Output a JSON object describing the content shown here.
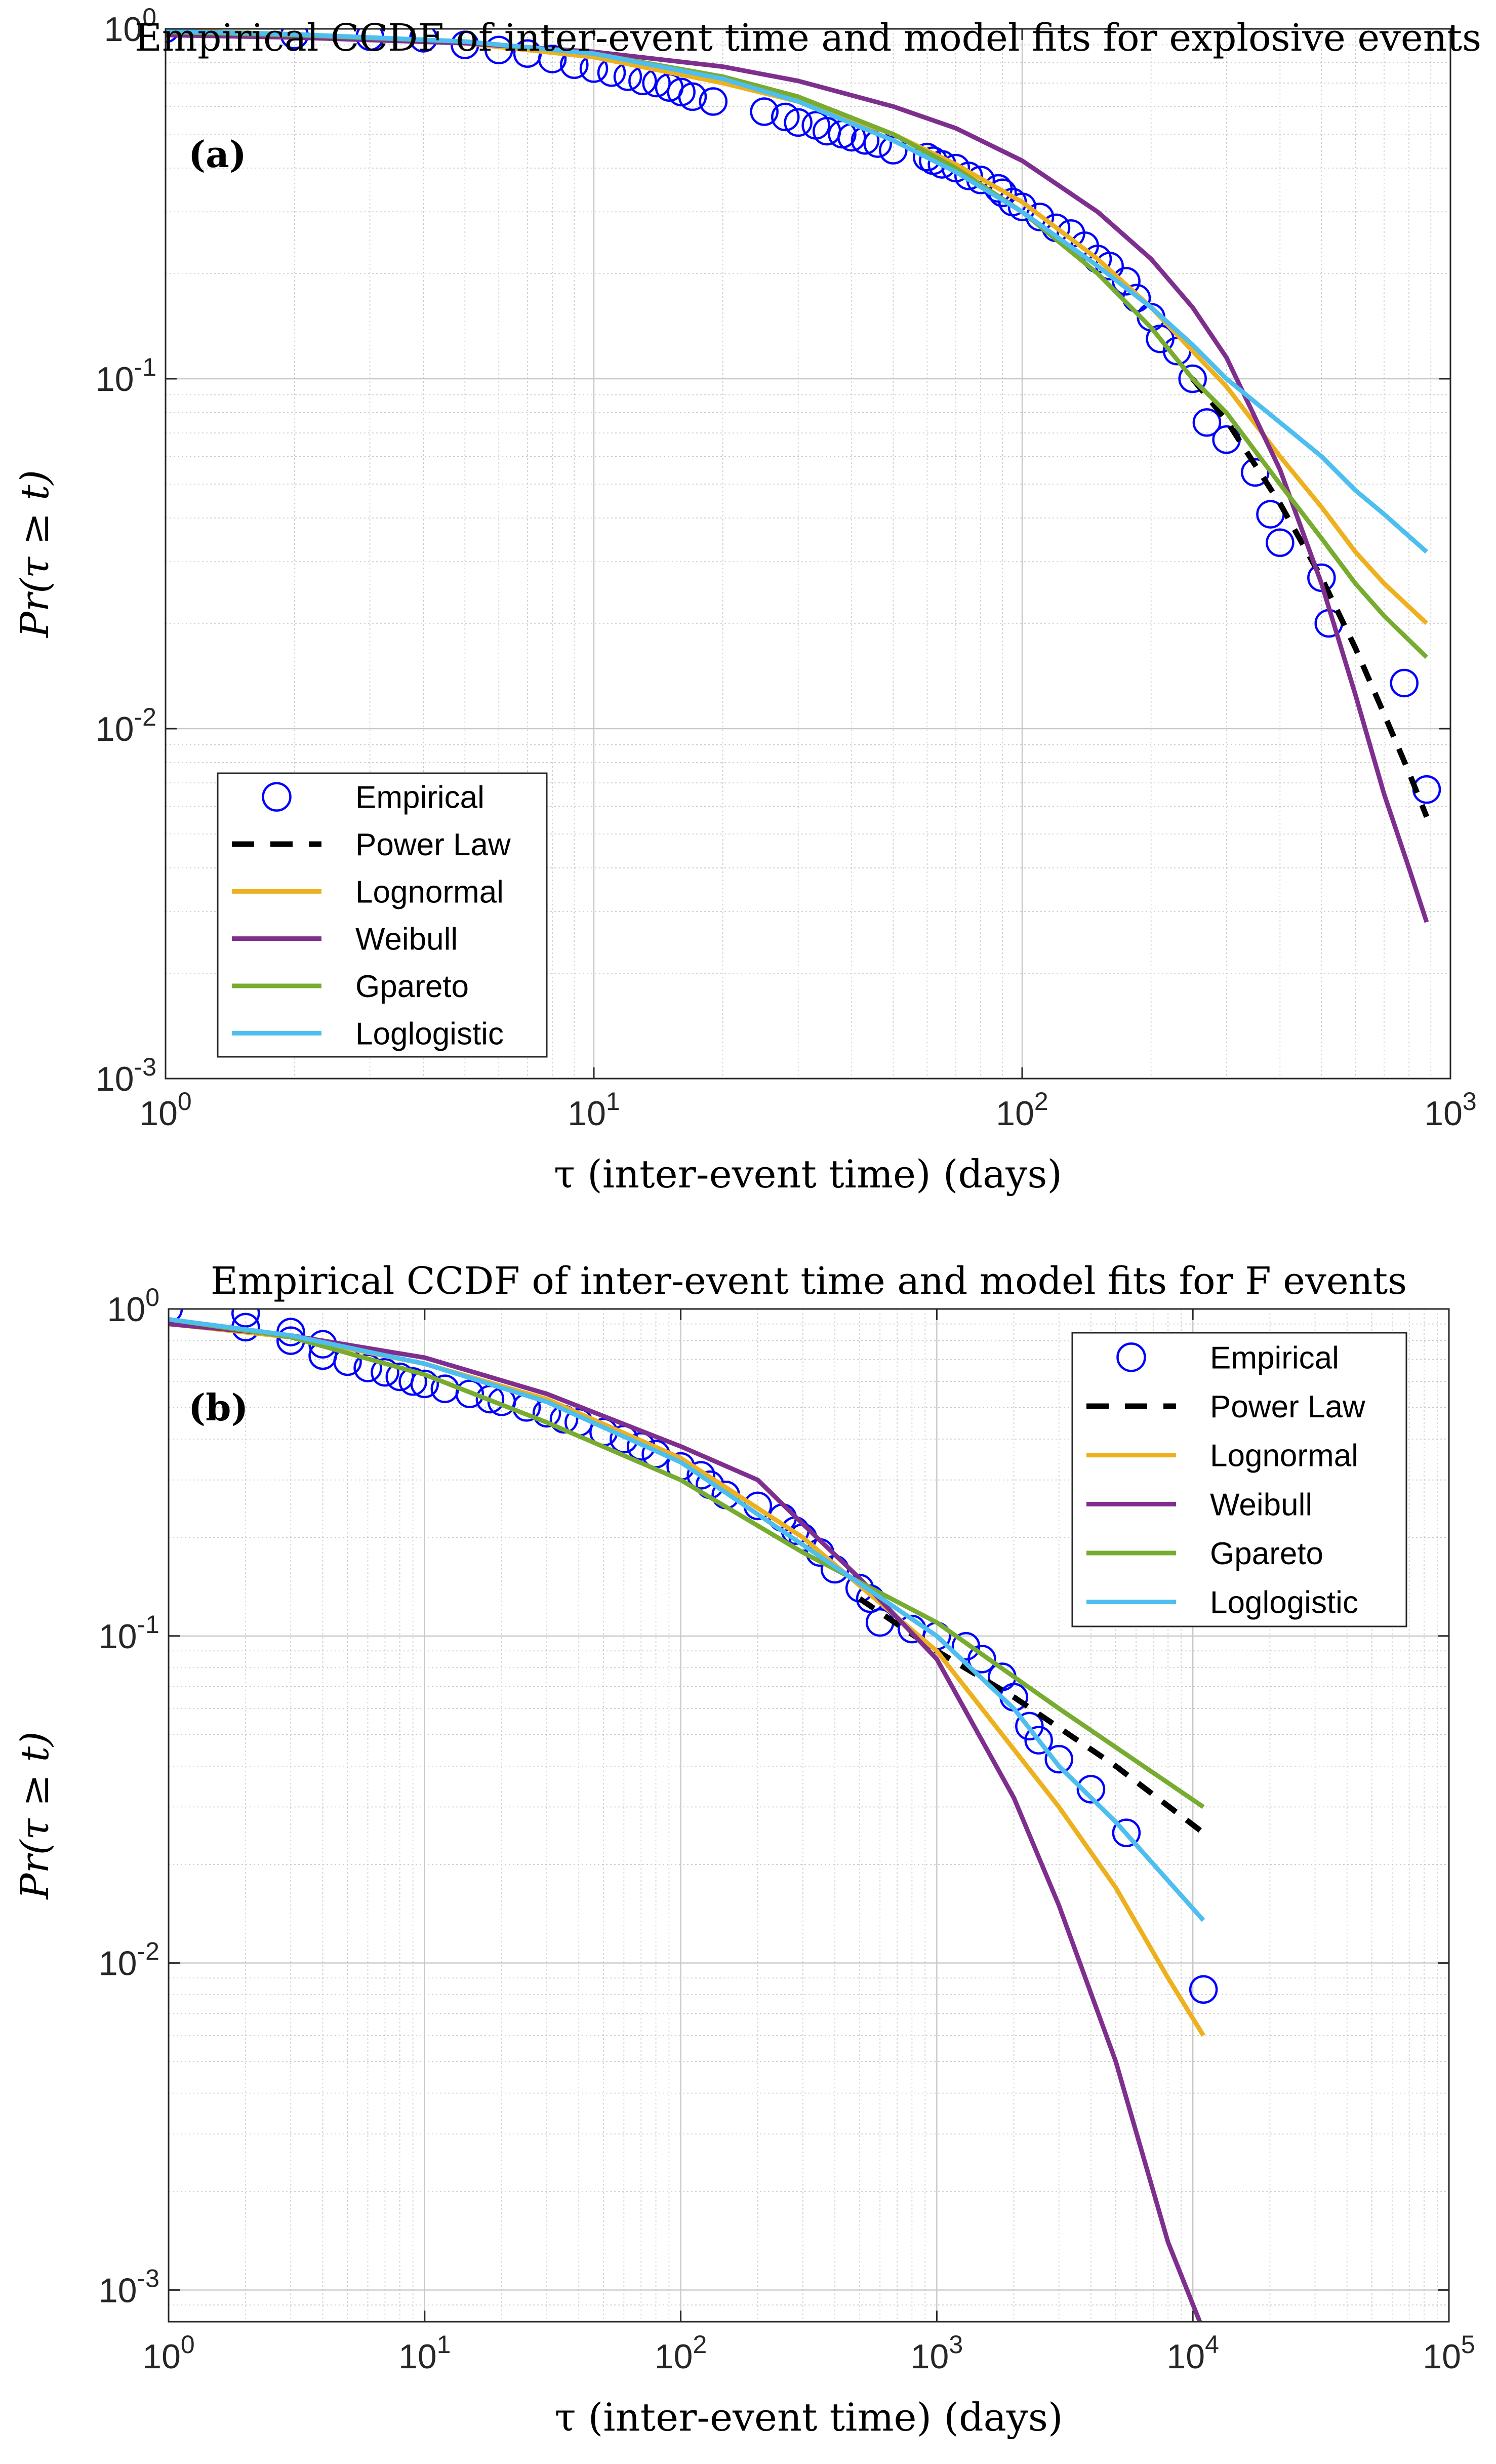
{
  "figure": {
    "background": "#ffffff",
    "grid_color": "#c8c8c8",
    "marker_color": "#0000ff",
    "colors": {
      "Power Law": "#000000",
      "Lognormal": "#edb120",
      "Weibull": "#7e2f8e",
      "Gpareto": "#77ac30",
      "Loglogistic": "#4dbeee"
    }
  },
  "chart_data": [
    {
      "type": "scatter",
      "panel_label": "(a)",
      "title": "Empirical CCDF of inter-event time and model fits for explosive events",
      "xlabel": "τ (inter-event time) (days)",
      "ylabel": "Pr(τ ≥ t)",
      "xscale": "log",
      "yscale": "log",
      "xlim": [
        1,
        1000
      ],
      "ylim": [
        0.001,
        1
      ],
      "grid": true,
      "legend_position": "bottom-left",
      "xticks": [
        {
          "base": "10",
          "exp": "0"
        },
        {
          "base": "10",
          "exp": "1"
        },
        {
          "base": "10",
          "exp": "2"
        },
        {
          "base": "10",
          "exp": "3"
        }
      ],
      "yticks": [
        {
          "base": "10",
          "exp": "0"
        },
        {
          "base": "10",
          "exp": "-1"
        },
        {
          "base": "10",
          "exp": "-2"
        },
        {
          "base": "10",
          "exp": "-3"
        }
      ],
      "legend": [
        "Empirical",
        "Power Law",
        "Lognormal",
        "Weibull",
        "Gpareto",
        "Loglogistic"
      ],
      "empirical": {
        "name": "Empirical",
        "x": [
          1,
          2,
          3,
          4,
          5,
          6,
          7,
          8,
          9,
          10,
          11,
          12,
          13,
          14,
          15,
          16,
          17,
          19,
          25,
          28,
          30,
          33,
          35,
          38,
          40,
          43,
          46,
          50,
          60,
          62,
          65,
          70,
          75,
          80,
          88,
          90,
          95,
          100,
          110,
          120,
          130,
          140,
          150,
          160,
          175,
          185,
          200,
          210,
          230,
          250,
          270,
          300,
          350,
          380,
          400,
          500,
          520,
          780,
          880
        ],
        "y": [
          1.0,
          0.96,
          0.95,
          0.94,
          0.9,
          0.87,
          0.85,
          0.82,
          0.79,
          0.77,
          0.75,
          0.73,
          0.71,
          0.7,
          0.68,
          0.66,
          0.64,
          0.62,
          0.58,
          0.56,
          0.54,
          0.53,
          0.51,
          0.5,
          0.49,
          0.48,
          0.47,
          0.45,
          0.43,
          0.42,
          0.41,
          0.4,
          0.38,
          0.37,
          0.35,
          0.34,
          0.32,
          0.31,
          0.29,
          0.27,
          0.26,
          0.24,
          0.22,
          0.21,
          0.19,
          0.17,
          0.15,
          0.13,
          0.12,
          0.1,
          0.075,
          0.067,
          0.054,
          0.041,
          0.034,
          0.027,
          0.02,
          0.0135,
          0.0067
        ]
      },
      "series": [
        {
          "name": "Power Law",
          "style": "dashed",
          "x": [
            250,
            300,
            400,
            500,
            600,
            700,
            800,
            880
          ],
          "y": [
            0.1,
            0.076,
            0.044,
            0.027,
            0.017,
            0.011,
            0.0075,
            0.0056
          ]
        },
        {
          "name": "Lognormal",
          "style": "solid",
          "x": [
            1,
            2,
            5,
            10,
            20,
            30,
            50,
            70,
            100,
            150,
            200,
            250,
            300,
            400,
            500,
            600,
            700,
            880
          ],
          "y": [
            0.99,
            0.965,
            0.91,
            0.83,
            0.7,
            0.62,
            0.5,
            0.41,
            0.32,
            0.22,
            0.16,
            0.12,
            0.095,
            0.06,
            0.043,
            0.032,
            0.026,
            0.02
          ]
        },
        {
          "name": "Weibull",
          "style": "solid",
          "x": [
            1,
            2,
            5,
            10,
            20,
            30,
            50,
            70,
            100,
            150,
            200,
            250,
            300,
            400,
            500,
            600,
            700,
            800,
            880
          ],
          "y": [
            0.96,
            0.945,
            0.91,
            0.86,
            0.78,
            0.71,
            0.6,
            0.52,
            0.42,
            0.3,
            0.22,
            0.16,
            0.115,
            0.055,
            0.026,
            0.0125,
            0.0065,
            0.004,
            0.0028
          ]
        },
        {
          "name": "Gpareto",
          "style": "solid",
          "x": [
            1,
            2,
            5,
            10,
            20,
            30,
            50,
            70,
            100,
            150,
            200,
            250,
            300,
            400,
            500,
            600,
            700,
            880
          ],
          "y": [
            0.98,
            0.96,
            0.92,
            0.85,
            0.73,
            0.64,
            0.5,
            0.4,
            0.3,
            0.2,
            0.14,
            0.1,
            0.08,
            0.05,
            0.035,
            0.026,
            0.021,
            0.016
          ]
        },
        {
          "name": "Loglogistic",
          "style": "solid",
          "x": [
            1,
            2,
            5,
            10,
            20,
            30,
            50,
            70,
            100,
            150,
            200,
            250,
            300,
            400,
            500,
            600,
            700,
            880
          ],
          "y": [
            0.985,
            0.965,
            0.92,
            0.85,
            0.72,
            0.62,
            0.48,
            0.39,
            0.3,
            0.21,
            0.16,
            0.125,
            0.1,
            0.075,
            0.06,
            0.048,
            0.041,
            0.032
          ]
        }
      ]
    },
    {
      "type": "scatter",
      "panel_label": "(b)",
      "title": "Empirical CCDF of inter-event time and model fits for F events",
      "xlabel": "τ (inter-event time) (days)",
      "ylabel": "Pr(τ ≥ t)",
      "xscale": "log",
      "yscale": "log",
      "xlim": [
        1,
        100000
      ],
      "ylim": [
        0.0008,
        1
      ],
      "grid": true,
      "legend_position": "top-right",
      "xticks": [
        {
          "base": "10",
          "exp": "0"
        },
        {
          "base": "10",
          "exp": "1"
        },
        {
          "base": "10",
          "exp": "2"
        },
        {
          "base": "10",
          "exp": "3"
        },
        {
          "base": "10",
          "exp": "4"
        },
        {
          "base": "10",
          "exp": "5"
        }
      ],
      "yticks": [
        {
          "base": "10",
          "exp": "0"
        },
        {
          "base": "10",
          "exp": "-1"
        },
        {
          "base": "10",
          "exp": "-2"
        },
        {
          "base": "10",
          "exp": "-3"
        }
      ],
      "legend": [
        "Empirical",
        "Power Law",
        "Lognormal",
        "Weibull",
        "Gpareto",
        "Loglogistic"
      ],
      "empirical": {
        "name": "Empirical",
        "x": [
          1,
          2,
          2,
          3,
          3,
          4,
          4,
          5,
          6,
          7,
          8,
          9,
          10,
          12,
          15,
          18,
          20,
          25,
          30,
          35,
          40,
          50,
          60,
          70,
          80,
          100,
          120,
          130,
          150,
          200,
          250,
          280,
          300,
          350,
          400,
          500,
          550,
          600,
          800,
          1000,
          1300,
          1500,
          1800,
          2000,
          2300,
          2500,
          3000,
          4000,
          5500,
          11000
        ],
        "y": [
          1.0,
          0.97,
          0.88,
          0.85,
          0.8,
          0.78,
          0.72,
          0.69,
          0.66,
          0.64,
          0.62,
          0.6,
          0.59,
          0.57,
          0.55,
          0.53,
          0.52,
          0.5,
          0.48,
          0.46,
          0.45,
          0.42,
          0.4,
          0.38,
          0.36,
          0.33,
          0.31,
          0.29,
          0.27,
          0.25,
          0.23,
          0.21,
          0.2,
          0.18,
          0.16,
          0.14,
          0.13,
          0.11,
          0.105,
          0.1,
          0.093,
          0.085,
          0.075,
          0.065,
          0.053,
          0.048,
          0.042,
          0.034,
          0.025,
          0.0083
        ]
      },
      "series": [
        {
          "name": "Power Law",
          "style": "dashed",
          "x": [
            500,
            1000,
            2000,
            5000,
            11000
          ],
          "y": [
            0.13,
            0.09,
            0.065,
            0.04,
            0.025
          ]
        },
        {
          "name": "Lognormal",
          "style": "solid",
          "x": [
            1,
            3,
            10,
            30,
            100,
            300,
            1000,
            2000,
            3000,
            5000,
            8000,
            11000
          ],
          "y": [
            0.9,
            0.82,
            0.68,
            0.53,
            0.35,
            0.2,
            0.09,
            0.045,
            0.03,
            0.017,
            0.009,
            0.006
          ]
        },
        {
          "name": "Weibull",
          "style": "solid",
          "x": [
            1,
            3,
            10,
            30,
            100,
            200,
            300,
            500,
            1000,
            2000,
            3000,
            5000,
            8000,
            11000
          ],
          "y": [
            0.9,
            0.83,
            0.71,
            0.55,
            0.38,
            0.3,
            0.22,
            0.15,
            0.085,
            0.032,
            0.015,
            0.005,
            0.0014,
            0.00075
          ]
        },
        {
          "name": "Gpareto",
          "style": "solid",
          "x": [
            1,
            3,
            10,
            30,
            100,
            300,
            1000,
            3000,
            11000
          ],
          "y": [
            0.93,
            0.82,
            0.63,
            0.45,
            0.3,
            0.18,
            0.11,
            0.06,
            0.03
          ]
        },
        {
          "name": "Loglogistic",
          "style": "solid",
          "x": [
            1,
            3,
            10,
            30,
            100,
            300,
            1000,
            2000,
            3000,
            5000,
            11000
          ],
          "y": [
            0.93,
            0.83,
            0.68,
            0.52,
            0.34,
            0.19,
            0.1,
            0.06,
            0.04,
            0.027,
            0.0135
          ]
        }
      ]
    }
  ]
}
